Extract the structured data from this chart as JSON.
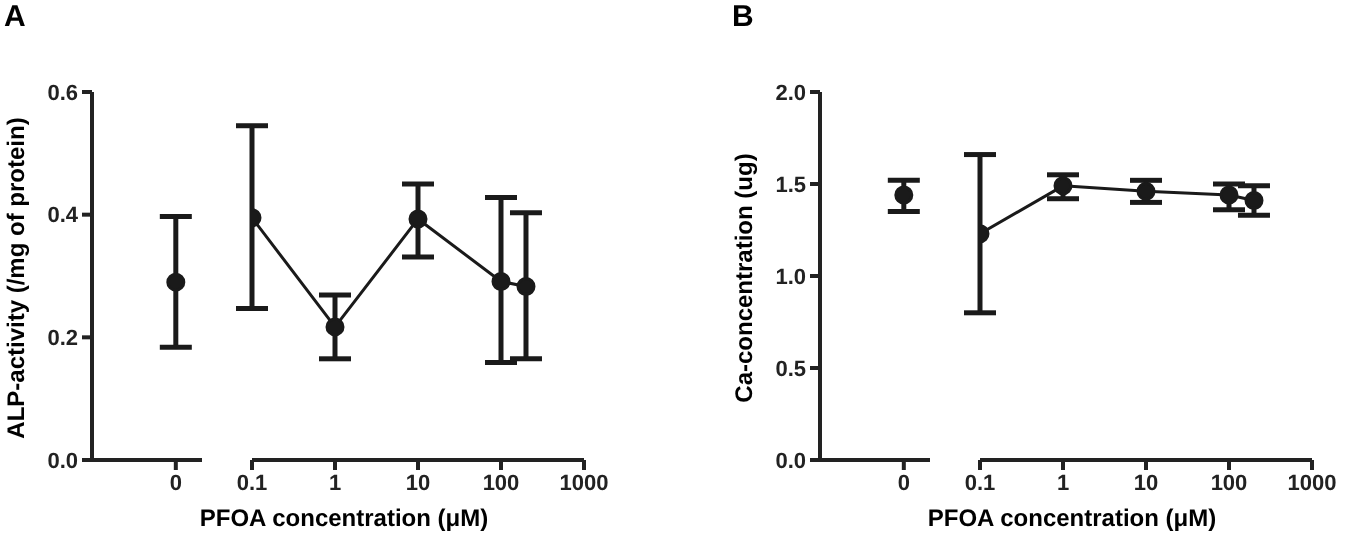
{
  "chart_data": [
    {
      "type": "line",
      "title": "A",
      "ylabel": "ALP-activity  (/mg of protein)",
      "categories": [
        "0"
      ],
      "ylim": [
        0,
        0.6
      ],
      "yticks": [
        {
          "value": 0,
          "label": "0.0"
        },
        0.2,
        0.4,
        0.6
      ],
      "marker": "circle",
      "series": [
        {
          "color": "#1a1a1a",
          "values": [
            0.29
          ],
          "errors": [
            [
              0.184,
              0.397
            ]
          ]
        }
      ]
    },
    {
      "type": "line",
      "xlabel": "PFOA concentration  (μM)",
      "x": [
        0.1,
        1,
        10,
        100,
        200
      ],
      "xlim": [
        0.1,
        1000
      ],
      "xticks": [
        0.1,
        1,
        10,
        100,
        1000
      ],
      "log": "x",
      "ylim": [
        0,
        0.6
      ],
      "tick_labels": "x",
      "marker": "circle",
      "series": [
        {
          "color": "#1a1a1a",
          "values": [
            0.395,
            0.217,
            0.393,
            0.291,
            0.283
          ],
          "errors": [
            [
              0.247,
              0.545
            ],
            [
              0.165,
              0.269
            ],
            [
              0.331,
              0.45
            ],
            [
              0.159,
              0.428
            ],
            [
              0.165,
              0.403
            ]
          ]
        }
      ]
    },
    {
      "type": "line",
      "title": "B",
      "ylabel": "Ca-concentration  (ug)",
      "categories": [
        "0"
      ],
      "ylim": [
        0,
        2.0
      ],
      "yticks": [
        {
          "value": 0,
          "label": "0.0"
        },
        0.5,
        {
          "value": 1,
          "label": "1.0"
        },
        1.5,
        {
          "value": 2,
          "label": "2.0"
        }
      ],
      "marker": "circle",
      "series": [
        {
          "color": "#1a1a1a",
          "values": [
            1.44
          ],
          "errors": [
            [
              1.35,
              1.52
            ]
          ]
        }
      ]
    },
    {
      "type": "line",
      "xlabel": "PFOA concentration  (μM)",
      "x": [
        0.1,
        1,
        10,
        100,
        200
      ],
      "xlim": [
        0.1,
        1000
      ],
      "xticks": [
        0.1,
        1,
        10,
        100,
        1000
      ],
      "log": "x",
      "ylim": [
        0,
        2.0
      ],
      "tick_labels": "x",
      "marker": "circle",
      "series": [
        {
          "color": "#1a1a1a",
          "values": [
            1.23,
            1.49,
            1.46,
            1.44,
            1.41
          ],
          "errors": [
            [
              0.8,
              1.66
            ],
            [
              1.42,
              1.55
            ],
            [
              1.4,
              1.52
            ],
            [
              1.36,
              1.5
            ],
            [
              1.33,
              1.49
            ]
          ]
        }
      ]
    }
  ]
}
